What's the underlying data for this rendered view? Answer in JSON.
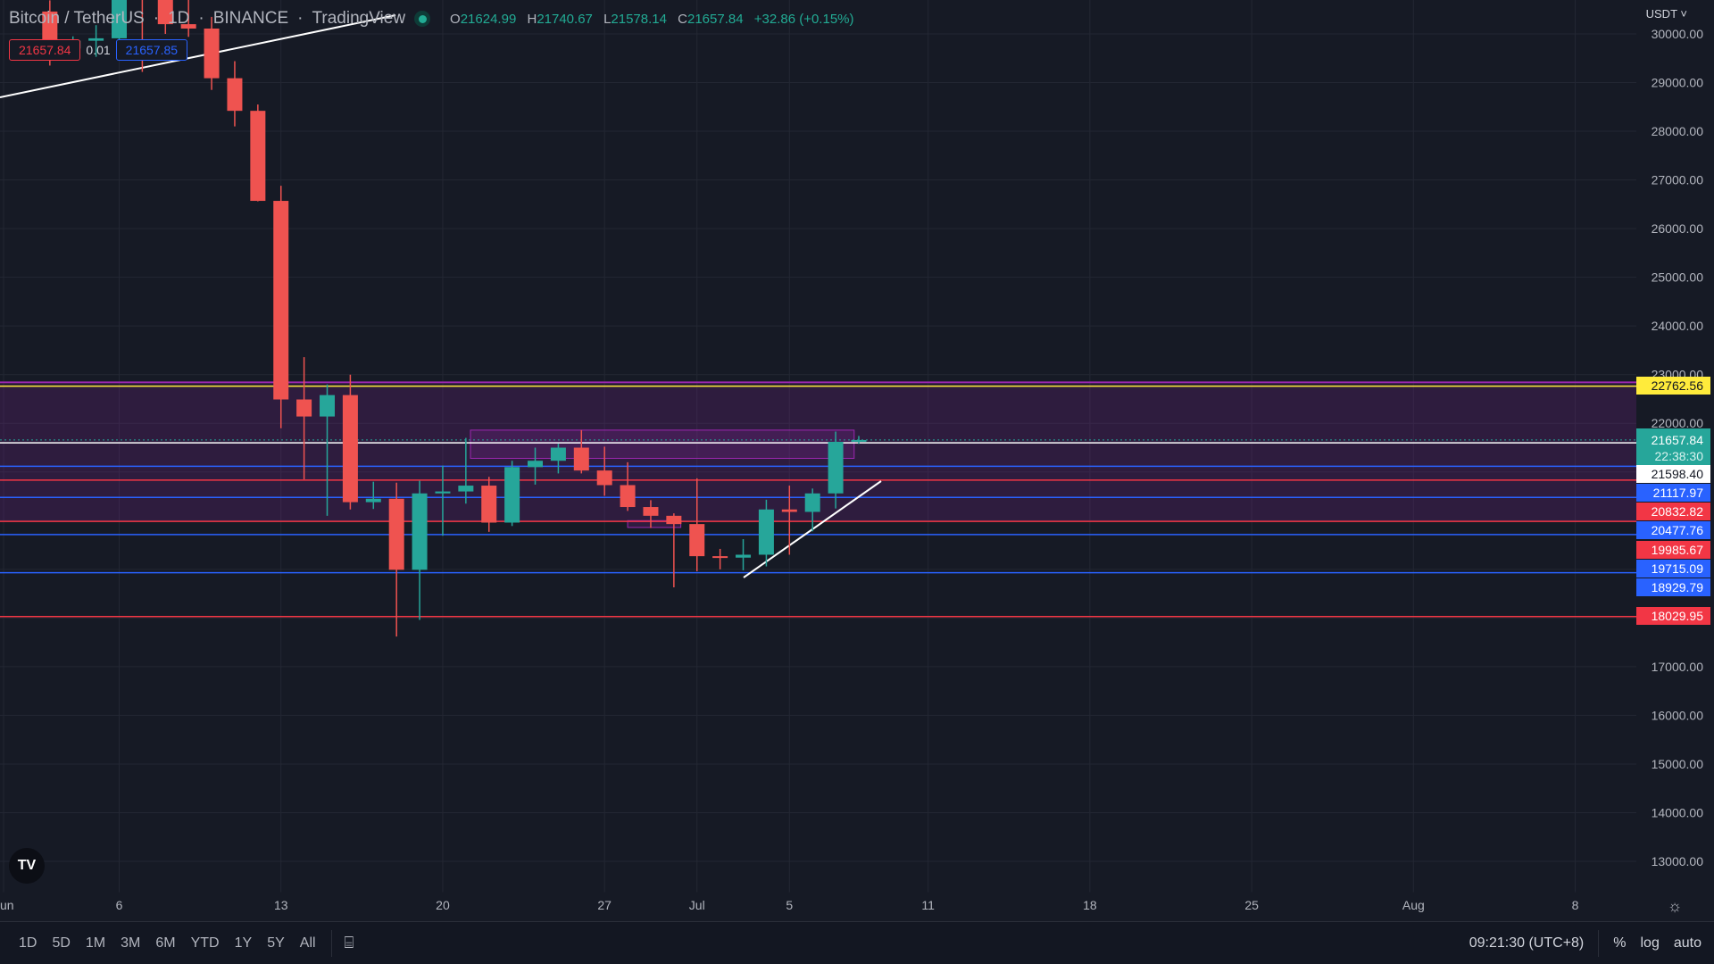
{
  "header": {
    "symbol": "Bitcoin / TetherUS",
    "interval": "1D",
    "exchange": "BINANCE",
    "source": "TradingView",
    "ohlc": {
      "o_label": "O",
      "o": "21624.99",
      "h_label": "H",
      "h": "21740.67",
      "l_label": "L",
      "l": "21578.14",
      "c_label": "C",
      "c": "21657.84",
      "change": "+32.86 (+0.15%)"
    }
  },
  "trade": {
    "sell": "21657.84",
    "spread": "0.01",
    "buy": "21657.85"
  },
  "currency": "USDT",
  "colors": {
    "up": "#26a69a",
    "down": "#ef5350",
    "yellow": "#ffeb3b",
    "blue": "#2962ff",
    "red": "#f23645",
    "purple": "#9c27b0"
  },
  "price_axis": {
    "ticks": [
      "30000.00",
      "29000.00",
      "28000.00",
      "27000.00",
      "26000.00",
      "25000.00",
      "24000.00",
      "23000.00",
      "22000.00",
      "17000.00",
      "16000.00",
      "15000.00",
      "14000.00",
      "13000.00"
    ]
  },
  "levels": [
    {
      "price": 22762.56,
      "label": "22762.56",
      "color": "#ffeb3b",
      "text": "#131722"
    },
    {
      "price": 21598.4,
      "label": "21598.40",
      "color": "#ffffff",
      "text": "#131722"
    },
    {
      "price": 21117.97,
      "label": "21117.97",
      "color": "#2962ff",
      "text": "#ffffff"
    },
    {
      "price": 20832.82,
      "label": "20832.82",
      "color": "#f23645",
      "text": "#ffffff"
    },
    {
      "price": 20477.76,
      "label": "20477.76",
      "color": "#2962ff",
      "text": "#ffffff"
    },
    {
      "price": 19985.67,
      "label": "19985.67",
      "color": "#f23645",
      "text": "#ffffff"
    },
    {
      "price": 19715.09,
      "label": "19715.09",
      "color": "#2962ff",
      "text": "#ffffff"
    },
    {
      "price": 18929.79,
      "label": "18929.79",
      "color": "#2962ff",
      "text": "#ffffff"
    },
    {
      "price": 18029.95,
      "label": "18029.95",
      "color": "#f23645",
      "text": "#ffffff"
    }
  ],
  "last_price": {
    "price": "21657.84",
    "countdown": "22:38:30"
  },
  "time_axis": {
    "labels": [
      {
        "d": -5,
        "t": "un"
      },
      {
        "d": 0,
        "t": "6"
      },
      {
        "d": 7,
        "t": "13"
      },
      {
        "d": 14,
        "t": "20"
      },
      {
        "d": 21,
        "t": "27"
      },
      {
        "d": 25,
        "t": "Jul"
      },
      {
        "d": 29,
        "t": "5"
      },
      {
        "d": 35,
        "t": "11"
      },
      {
        "d": 42,
        "t": "18"
      },
      {
        "d": 49,
        "t": "25"
      },
      {
        "d": 56,
        "t": "Aug"
      },
      {
        "d": 63,
        "t": "8"
      }
    ]
  },
  "candles": [
    [
      -3,
      30460,
      30690,
      29350,
      29700
    ],
    [
      -2,
      29700,
      29950,
      29500,
      29860
    ],
    [
      -1,
      29860,
      30180,
      29530,
      29910
    ],
    [
      0,
      29910,
      31760,
      29500,
      31370
    ],
    [
      1,
      31370,
      31550,
      29220,
      31125
    ],
    [
      2,
      31125,
      31330,
      30000,
      30200
    ],
    [
      3,
      30200,
      30700,
      29940,
      30110
    ],
    [
      4,
      30110,
      30350,
      28850,
      29090
    ],
    [
      5,
      29090,
      29440,
      28100,
      28420
    ],
    [
      6,
      28420,
      28550,
      26560,
      26570
    ],
    [
      7,
      26570,
      26880,
      21900,
      22490
    ],
    [
      8,
      22490,
      23360,
      20850,
      22140
    ],
    [
      9,
      22140,
      22800,
      20100,
      22580
    ],
    [
      10,
      22580,
      23000,
      20230,
      20380
    ],
    [
      11,
      20380,
      20800,
      20240,
      20450
    ],
    [
      12,
      20450,
      20780,
      17620,
      18990
    ],
    [
      13,
      18990,
      20820,
      17960,
      20560
    ],
    [
      14,
      20560,
      21130,
      19690,
      20600
    ],
    [
      15,
      20600,
      21700,
      20350,
      20720
    ],
    [
      16,
      20720,
      20900,
      19770,
      19960
    ],
    [
      17,
      19960,
      21230,
      19890,
      21100
    ],
    [
      18,
      21100,
      21500,
      20740,
      21230
    ],
    [
      19,
      21230,
      21580,
      20970,
      21500
    ],
    [
      20,
      21500,
      21860,
      20970,
      21030
    ],
    [
      21,
      21030,
      21520,
      20510,
      20730
    ],
    [
      22,
      20730,
      21200,
      20200,
      20280
    ],
    [
      23,
      20280,
      20420,
      19850,
      20100
    ],
    [
      24,
      20100,
      20150,
      18630,
      19930
    ],
    [
      25,
      19930,
      20870,
      18960,
      19270
    ],
    [
      26,
      19270,
      19420,
      19000,
      19240
    ],
    [
      27,
      19240,
      19620,
      18980,
      19300
    ],
    [
      28,
      19300,
      20430,
      19060,
      20230
    ],
    [
      29,
      20230,
      20720,
      19300,
      20180
    ],
    [
      30,
      20180,
      20660,
      19780,
      20560
    ],
    [
      31,
      20560,
      21830,
      20250,
      21620
    ],
    [
      32,
      21625,
      21740,
      21578,
      21657
    ]
  ],
  "bottombar": {
    "ranges": [
      "1D",
      "5D",
      "1M",
      "3M",
      "6M",
      "YTD",
      "1Y",
      "5Y",
      "All"
    ],
    "clock": "09:21:30 (UTC+8)",
    "percent": "%",
    "log": "log",
    "auto": "auto"
  },
  "logo": "TV"
}
